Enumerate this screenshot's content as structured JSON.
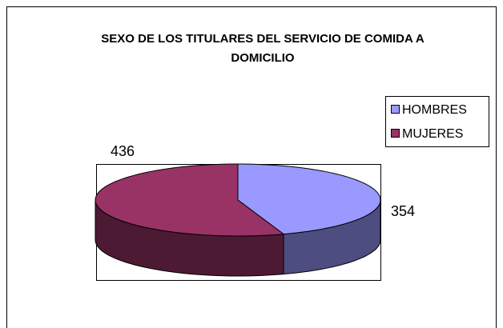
{
  "chart_data": {
    "type": "pie",
    "title": "SEXO DE LOS TITULARES DEL SERVICIO DE COMIDA A DOMICILIO",
    "categories": [
      "HOMBRES",
      "MUJERES"
    ],
    "values": [
      354,
      436
    ],
    "colors": [
      "#9999ff",
      "#993366"
    ],
    "legend": "right"
  }
}
